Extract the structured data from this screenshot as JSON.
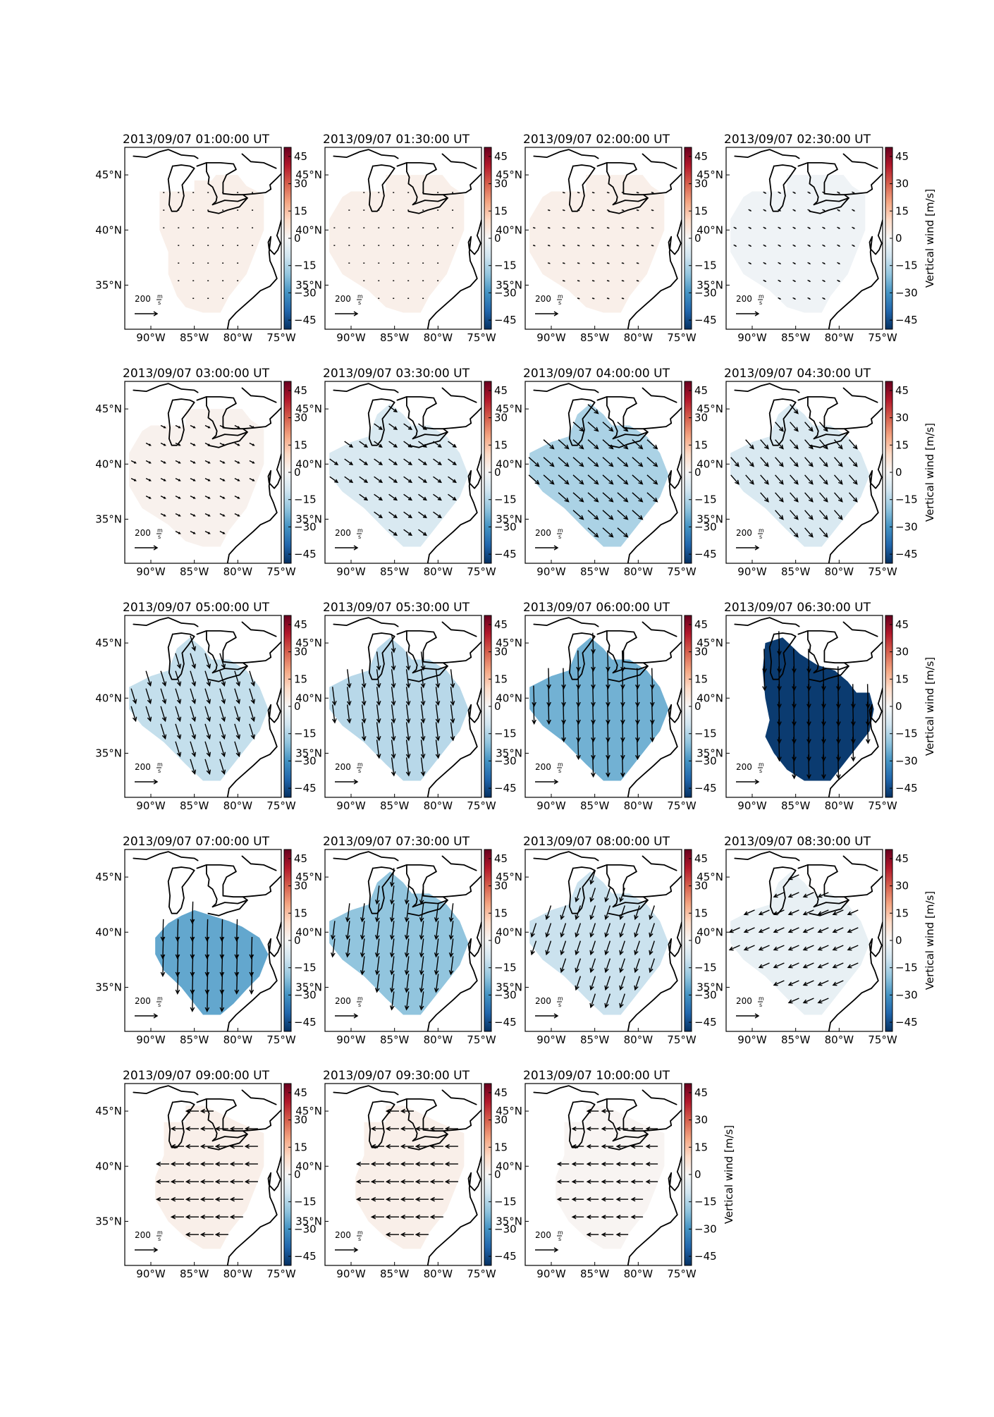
{
  "figure": {
    "colorbar_label": "Vertical wind [m/s]",
    "colorbar_ticks": [
      45,
      30,
      15,
      0,
      -15,
      -30,
      -45
    ],
    "colorbar_range": [
      -50,
      50
    ],
    "colormap": [
      "#053061",
      "#2166ac",
      "#4393c3",
      "#92c5de",
      "#d1e5f0",
      "#f7f7f7",
      "#fddbc7",
      "#f4a582",
      "#d6604d",
      "#b2182b",
      "#67001f"
    ],
    "lon_ticks": [
      "90°W",
      "85°W",
      "80°W",
      "75°W"
    ],
    "lat_ticks": [
      "45°N",
      "40°N",
      "35°N"
    ],
    "quiver_key_label": "200",
    "quiver_key_unit_num": "m",
    "quiver_key_unit_den": "s",
    "map_extent": {
      "lon": [
        -93,
        -75
      ],
      "lat": [
        31,
        47.5
      ]
    }
  },
  "chart_data": {
    "type": "heatmap",
    "description_of_values": "colored region fill = vertical wind (m/s); arrows = horizontal wind (m/s, u eastward, v northward)",
    "panels": [
      {
        "title": "2013/09/07 01:00:00 UT",
        "vertical_wind": 3,
        "region": "r1",
        "wind": {
          "u": 10,
          "v": -2
        }
      },
      {
        "title": "2013/09/07 01:30:00 UT",
        "vertical_wind": 3,
        "region": "r2",
        "wind": {
          "u": 10,
          "v": -2
        }
      },
      {
        "title": "2013/09/07 02:00:00 UT",
        "vertical_wind": 3,
        "region": "r2",
        "wind": {
          "u": 15,
          "v": -5
        }
      },
      {
        "title": "2013/09/07 02:30:00 UT",
        "vertical_wind": -2,
        "region": "r2",
        "wind": {
          "u": 20,
          "v": -10
        }
      },
      {
        "title": "2013/09/07 03:00:00 UT",
        "vertical_wind": 2,
        "region": "r2",
        "wind": {
          "u": 40,
          "v": -20
        }
      },
      {
        "title": "2013/09/07 03:30:00 UT",
        "vertical_wind": -8,
        "region": "r3",
        "wind": {
          "u": 70,
          "v": -50
        }
      },
      {
        "title": "2013/09/07 04:00:00 UT",
        "vertical_wind": -16,
        "region": "r3",
        "wind": {
          "u": 90,
          "v": -80
        }
      },
      {
        "title": "2013/09/07 04:30:00 UT",
        "vertical_wind": -8,
        "region": "r3",
        "wind": {
          "u": 70,
          "v": -80
        }
      },
      {
        "title": "2013/09/07 05:00:00 UT",
        "vertical_wind": -12,
        "region": "r3",
        "wind": {
          "u": 40,
          "v": -130
        }
      },
      {
        "title": "2013/09/07 05:30:00 UT",
        "vertical_wind": -14,
        "region": "r3",
        "wind": {
          "u": 20,
          "v": -160
        }
      },
      {
        "title": "2013/09/07 06:00:00 UT",
        "vertical_wind": -24,
        "region": "r3",
        "wind": {
          "u": 5,
          "v": -180
        }
      },
      {
        "title": "2013/09/07 06:30:00 UT",
        "vertical_wind": -48,
        "region": "r4",
        "wind": {
          "u": 5,
          "v": -210
        }
      },
      {
        "title": "2013/09/07 07:00:00 UT",
        "vertical_wind": -26,
        "region": "r5",
        "wind": {
          "u": -5,
          "v": -190
        }
      },
      {
        "title": "2013/09/07 07:30:00 UT",
        "vertical_wind": -20,
        "region": "r3",
        "wind": {
          "u": -20,
          "v": -160
        }
      },
      {
        "title": "2013/09/07 08:00:00 UT",
        "vertical_wind": -11,
        "region": "r3",
        "wind": {
          "u": -40,
          "v": -120
        }
      },
      {
        "title": "2013/09/07 08:30:00 UT",
        "vertical_wind": -4,
        "region": "r3",
        "wind": {
          "u": -90,
          "v": -40
        }
      },
      {
        "title": "2013/09/07 09:00:00 UT",
        "vertical_wind": 3,
        "region": "r6",
        "wind": {
          "u": -110,
          "v": 0
        }
      },
      {
        "title": "2013/09/07 09:30:00 UT",
        "vertical_wind": 3,
        "region": "r6",
        "wind": {
          "u": -110,
          "v": 0
        }
      },
      {
        "title": "2013/09/07 10:00:00 UT",
        "vertical_wind": 1,
        "region": "r6",
        "wind": {
          "u": -100,
          "v": 0
        }
      }
    ]
  }
}
